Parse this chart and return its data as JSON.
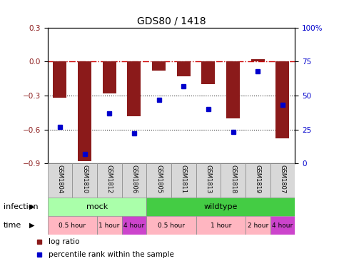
{
  "title": "GDS80 / 1418",
  "samples": [
    "GSM1804",
    "GSM1810",
    "GSM1812",
    "GSM1806",
    "GSM1805",
    "GSM1811",
    "GSM1813",
    "GSM1818",
    "GSM1819",
    "GSM1807"
  ],
  "log_ratios": [
    -0.32,
    -0.88,
    -0.28,
    -0.48,
    -0.08,
    -0.13,
    -0.2,
    -0.5,
    0.02,
    -0.68
  ],
  "percentile_ranks": [
    27,
    7,
    37,
    22,
    47,
    57,
    40,
    23,
    68,
    43
  ],
  "ylim_left": [
    -0.9,
    0.3
  ],
  "ylim_right": [
    0,
    100
  ],
  "yticks_left": [
    -0.9,
    -0.6,
    -0.3,
    0.0,
    0.3
  ],
  "yticks_right": [
    0,
    25,
    50,
    75,
    100
  ],
  "bar_color": "#8B1A1A",
  "dot_color": "#0000CC",
  "hline_color": "#CC0000",
  "dotline_color": "#333333",
  "infection_groups": [
    {
      "label": "mock",
      "start": 0,
      "end": 4,
      "color": "#AAFFAA"
    },
    {
      "label": "wildtype",
      "start": 4,
      "end": 10,
      "color": "#44CC44"
    }
  ],
  "time_groups": [
    {
      "label": "0.5 hour",
      "start": 0,
      "end": 2,
      "color": "#FFB6C1"
    },
    {
      "label": "1 hour",
      "start": 2,
      "end": 3,
      "color": "#FFB6C1"
    },
    {
      "label": "4 hour",
      "start": 3,
      "end": 4,
      "color": "#CC44CC"
    },
    {
      "label": "0.5 hour",
      "start": 4,
      "end": 6,
      "color": "#FFB6C1"
    },
    {
      "label": "1 hour",
      "start": 6,
      "end": 8,
      "color": "#FFB6C1"
    },
    {
      "label": "2 hour",
      "start": 8,
      "end": 9,
      "color": "#FFB6C1"
    },
    {
      "label": "4 hour",
      "start": 9,
      "end": 10,
      "color": "#CC44CC"
    }
  ],
  "legend_label_bar": "log ratio",
  "legend_label_dot": "percentile rank within the sample",
  "row_label_infection": "infection",
  "row_label_time": "time"
}
